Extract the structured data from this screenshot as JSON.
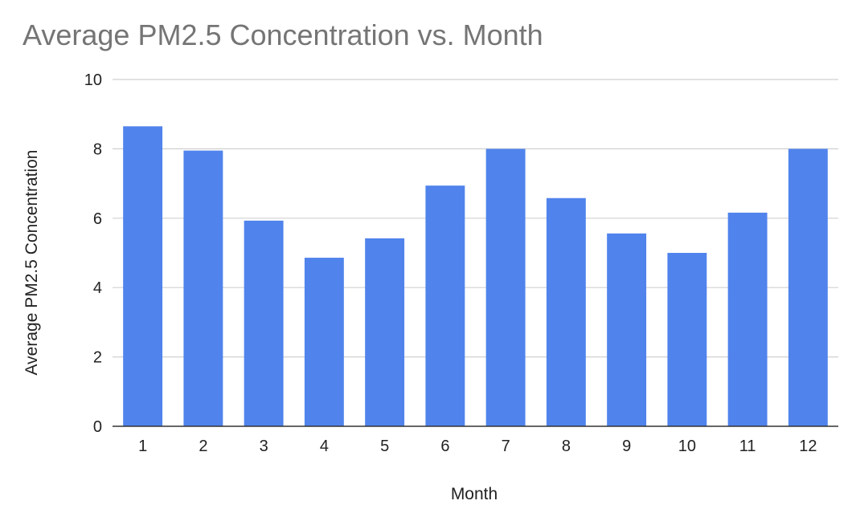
{
  "chart_data": {
    "type": "bar",
    "title": "Average PM2.5 Concentration vs. Month",
    "xlabel": "Month",
    "ylabel": "Average PM2.5 Concentration",
    "categories": [
      "1",
      "2",
      "3",
      "4",
      "5",
      "6",
      "7",
      "8",
      "9",
      "10",
      "11",
      "12"
    ],
    "series": [
      {
        "values": [
          8.65,
          7.95,
          5.93,
          4.86,
          5.42,
          6.94,
          8.0,
          6.58,
          5.56,
          5.0,
          6.16,
          8.0
        ]
      }
    ],
    "ylim": [
      0,
      10
    ],
    "yticks": [
      "0",
      "2",
      "4",
      "6",
      "8",
      "10"
    ],
    "grid": true,
    "legend": "none",
    "colors": {
      "bar": "#5083ec",
      "grid": "#d0d0d0",
      "axis": "#333333"
    }
  }
}
